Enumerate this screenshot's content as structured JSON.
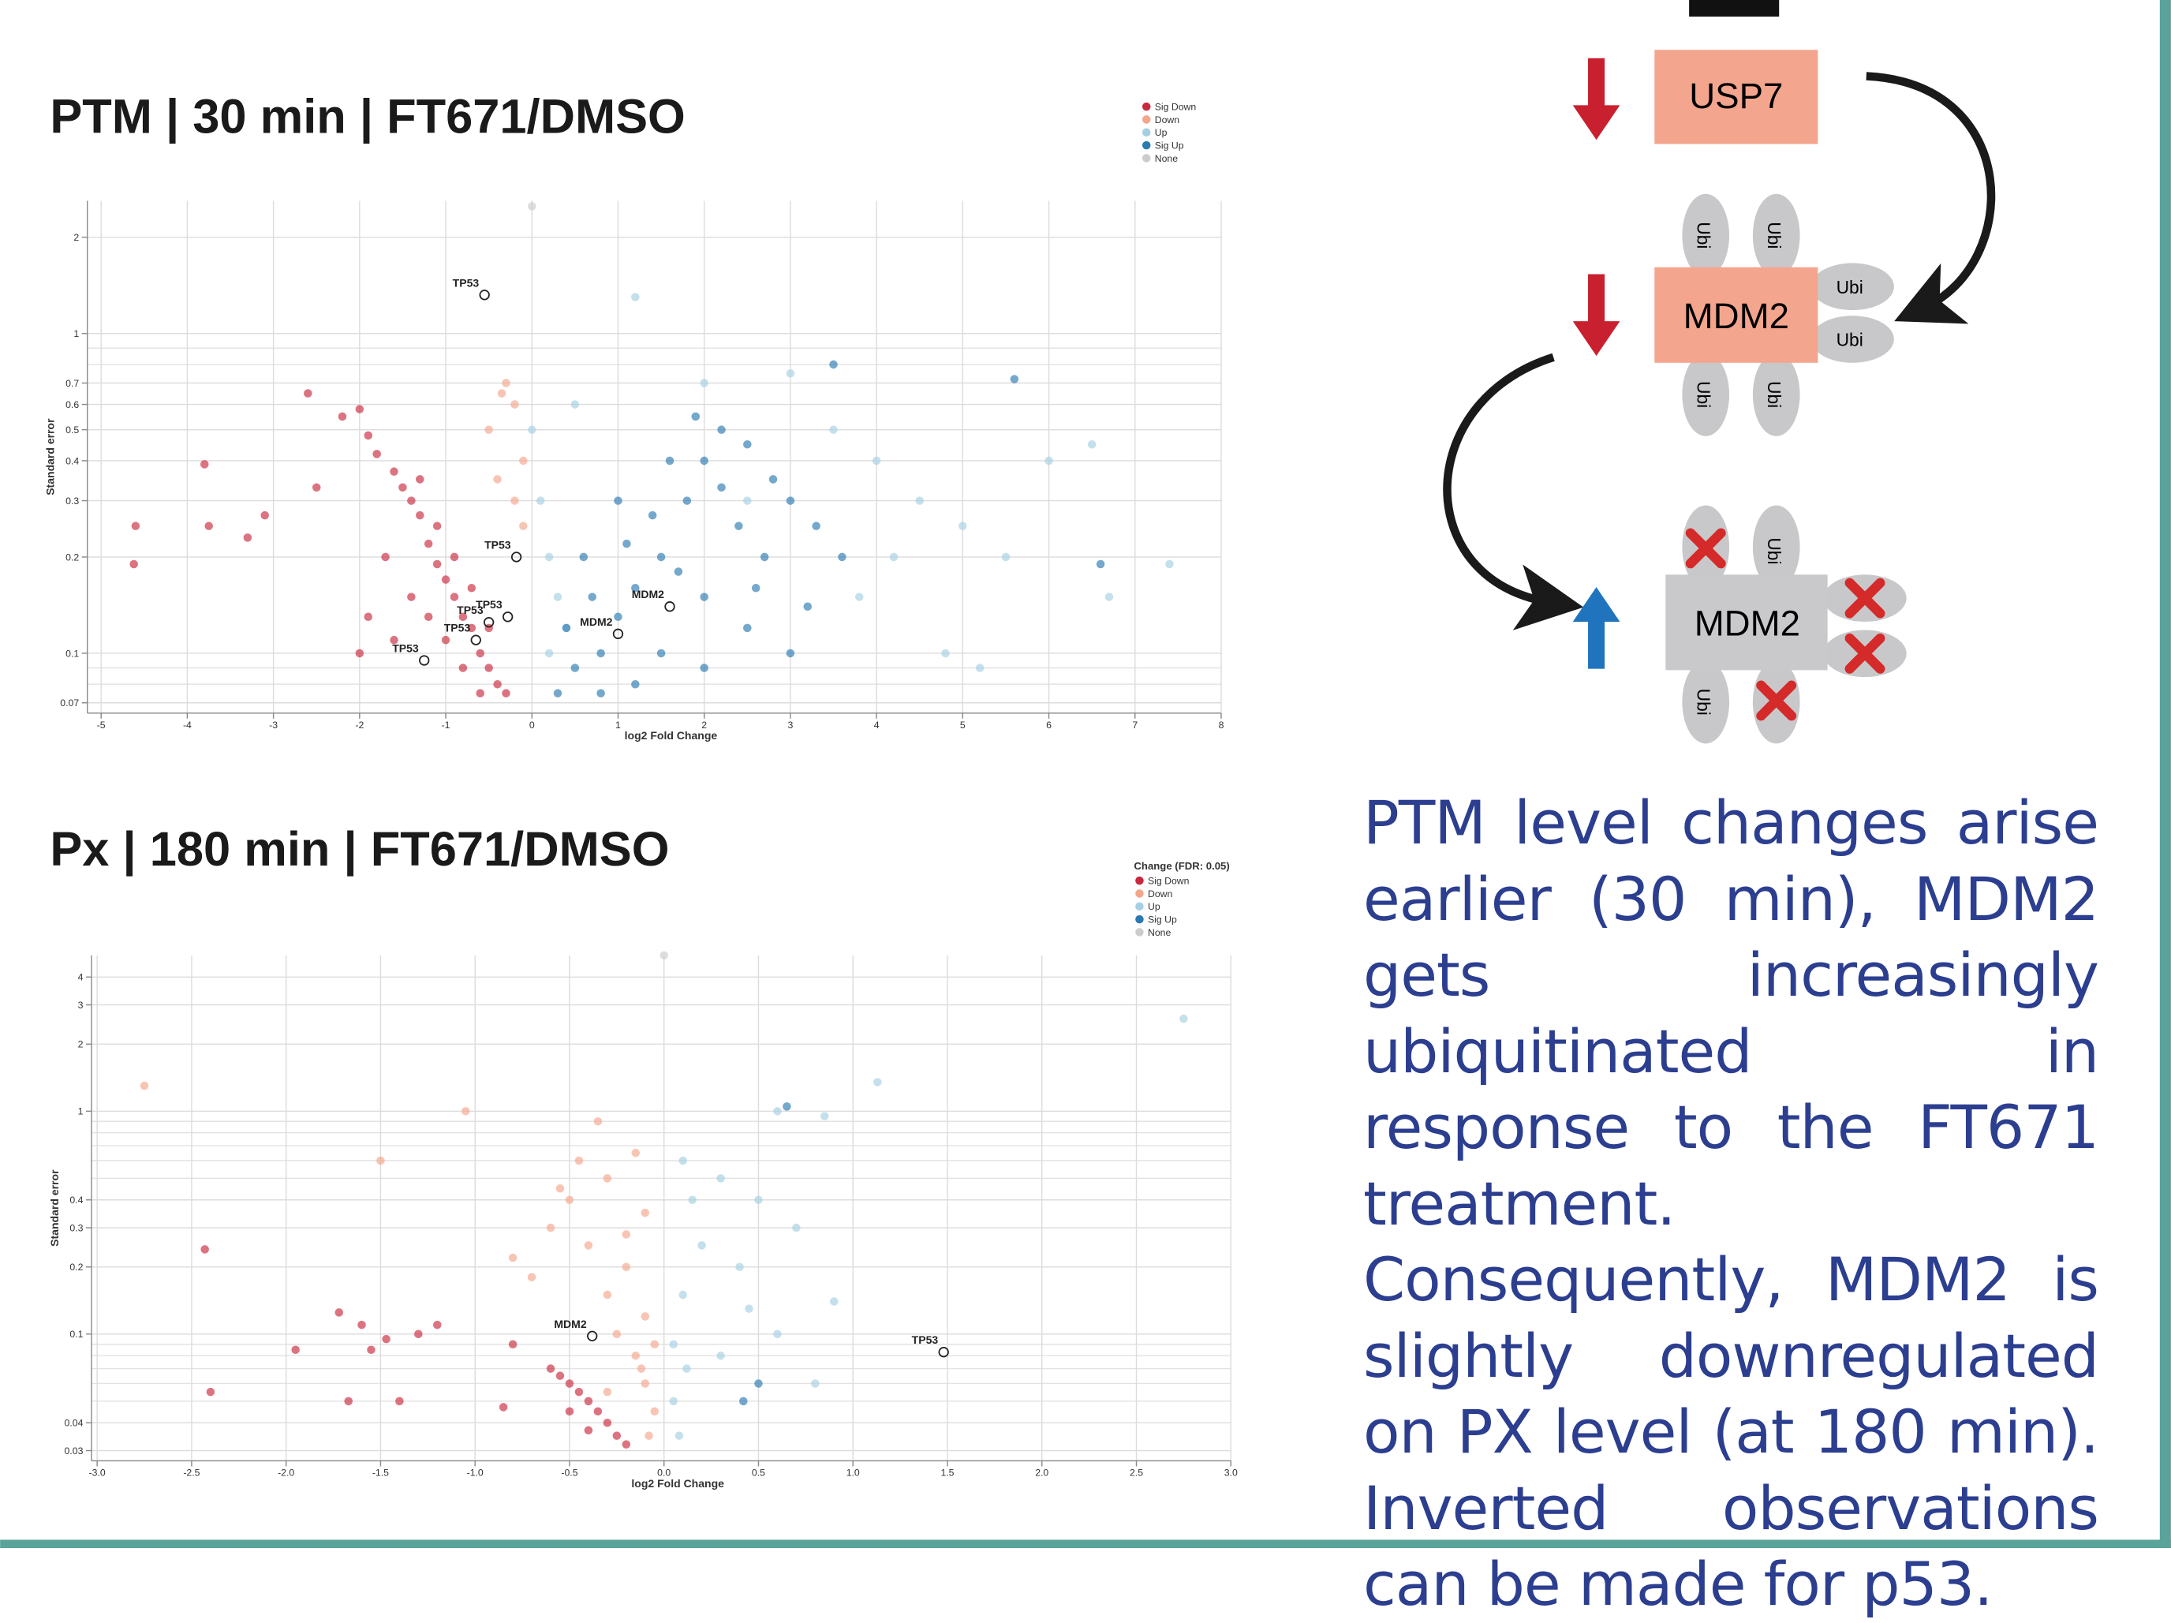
{
  "chart_data": [
    {
      "type": "scatter",
      "title": "PTM | 30 min | FT671/DMSO",
      "x_label": "log2 Fold Change",
      "y_label": "Standard error",
      "log_y": true,
      "grid": true,
      "xlim": [
        -5.16,
        8
      ],
      "xticks": [
        -5,
        -4,
        -3,
        -2,
        -1,
        0,
        1,
        2,
        3,
        4,
        5,
        6,
        7,
        8
      ],
      "ylim": [
        0.065,
        2.6
      ],
      "yticks": [
        0.07,
        0.1,
        0.2,
        0.3,
        0.4,
        0.5,
        0.6,
        0.7,
        1,
        2
      ],
      "minor_yticks": [
        0.08,
        0.09,
        0.8,
        0.9
      ],
      "series": [
        {
          "name": "Sig Down",
          "color": "#c9283e",
          "x": [
            -4.6,
            -4.62,
            -3.8,
            -3.75,
            -3.3,
            -3.1,
            -2.6,
            -2.5,
            -2.2,
            -2.0,
            -1.9,
            -1.8,
            -1.6,
            -1.5,
            -1.4,
            -1.3,
            -1.2,
            -1.1,
            -1.0,
            -0.9,
            -0.8,
            -0.7,
            -0.6,
            -0.5,
            -0.4,
            -0.3,
            -1.6,
            -1.9,
            -1.4,
            -1.2,
            -1.0,
            -0.8,
            -0.6,
            -2.0,
            -1.7,
            -1.1,
            -0.9,
            -0.7,
            -0.5,
            -1.3
          ],
          "values": [
            0.25,
            0.19,
            0.39,
            0.25,
            0.23,
            0.27,
            0.65,
            0.33,
            0.55,
            0.58,
            0.48,
            0.42,
            0.37,
            0.33,
            0.3,
            0.27,
            0.22,
            0.19,
            0.17,
            0.15,
            0.13,
            0.12,
            0.1,
            0.09,
            0.08,
            0.075,
            0.11,
            0.13,
            0.15,
            0.13,
            0.11,
            0.09,
            0.075,
            0.1,
            0.2,
            0.25,
            0.2,
            0.16,
            0.12,
            0.35
          ]
        },
        {
          "name": "Down",
          "color": "#f4a68c",
          "x": [
            -0.3,
            -0.2,
            -0.5,
            -0.1,
            -0.4,
            -0.2,
            -0.1,
            -0.35
          ],
          "values": [
            0.7,
            0.6,
            0.5,
            0.4,
            0.35,
            0.3,
            0.25,
            0.65
          ]
        },
        {
          "name": "Up",
          "color": "#a6cfe3",
          "x": [
            0.0,
            0.1,
            0.2,
            0.3,
            0.4,
            1.2,
            2.0,
            3.0,
            3.5,
            4.0,
            4.5,
            5.0,
            5.5,
            6.0,
            6.5,
            6.7,
            7.4,
            4.8,
            5.2,
            3.8,
            4.2,
            2.5,
            0.5,
            0.2
          ],
          "values": [
            0.5,
            0.3,
            0.2,
            0.15,
            0.12,
            1.3,
            0.7,
            0.75,
            0.5,
            0.4,
            0.3,
            0.25,
            0.2,
            0.4,
            0.45,
            0.15,
            0.19,
            0.1,
            0.09,
            0.15,
            0.2,
            0.3,
            0.6,
            0.1
          ]
        },
        {
          "name": "Sig Up",
          "color": "#2a79b0",
          "x": [
            0.3,
            0.5,
            0.8,
            1.0,
            1.2,
            1.5,
            1.8,
            2.0,
            2.2,
            1.9,
            2.5,
            2.8,
            3.0,
            3.3,
            3.6,
            2.0,
            2.5,
            1.5,
            1.2,
            0.8,
            2.0,
            3.0,
            3.5,
            5.6,
            6.6,
            2.7,
            1.0,
            0.6,
            1.6,
            2.4,
            0.4,
            0.7,
            1.1,
            1.4,
            1.7,
            2.2,
            2.6,
            3.2
          ],
          "values": [
            0.075,
            0.09,
            0.1,
            0.13,
            0.16,
            0.2,
            0.3,
            0.4,
            0.5,
            0.55,
            0.45,
            0.35,
            0.3,
            0.25,
            0.2,
            0.15,
            0.12,
            0.1,
            0.08,
            0.075,
            0.09,
            0.1,
            0.8,
            0.72,
            0.19,
            0.2,
            0.3,
            0.2,
            0.4,
            0.25,
            0.12,
            0.15,
            0.22,
            0.27,
            0.18,
            0.33,
            0.16,
            0.14
          ]
        },
        {
          "name": "None",
          "color": "#cccccc",
          "x": [
            0.0
          ],
          "values": [
            2.5
          ]
        }
      ],
      "annotations": [
        {
          "text": "TP53",
          "x": -0.55,
          "y": 1.32
        },
        {
          "text": "TP53",
          "x": -0.18,
          "y": 0.2
        },
        {
          "text": "TP53",
          "x": -0.28,
          "y": 0.13
        },
        {
          "text": "TP53",
          "x": -0.5,
          "y": 0.125
        },
        {
          "text": "TP53",
          "x": -0.65,
          "y": 0.11
        },
        {
          "text": "TP53",
          "x": -1.25,
          "y": 0.095
        },
        {
          "text": "MDM2",
          "x": 1.6,
          "y": 0.14
        },
        {
          "text": "MDM2",
          "x": 1.0,
          "y": 0.115
        }
      ]
    },
    {
      "type": "scatter",
      "title": "Px | 180 min | FT671/DMSO",
      "x_label": "log2 Fold Change",
      "y_label": "Standard error",
      "legend_title": "Change (FDR: 0.05)",
      "log_y": true,
      "grid": true,
      "xlim": [
        -3.03,
        3.0
      ],
      "xticks": [
        {
          "value": -3,
          "label": "-3.0"
        },
        {
          "value": -2.5,
          "label": "-2.5"
        },
        {
          "value": -2,
          "label": "-2.0"
        },
        {
          "value": -1.5,
          "label": "-1.5"
        },
        {
          "value": -1,
          "label": "-1.0"
        },
        {
          "value": -0.5,
          "label": "-0.5"
        },
        {
          "value": 0,
          "label": "0.0"
        },
        {
          "value": 0.5,
          "label": "0.5"
        },
        {
          "value": 1,
          "label": "1.0"
        },
        {
          "value": 1.5,
          "label": "1.5"
        },
        {
          "value": 2,
          "label": "2.0"
        },
        {
          "value": 2.5,
          "label": "2.5"
        },
        {
          "value": 3,
          "label": "3.0"
        }
      ],
      "ylim": [
        0.027,
        5
      ],
      "yticks": [
        0.03,
        0.04,
        0.1,
        0.2,
        0.3,
        0.4,
        1,
        2,
        3,
        4
      ],
      "minor_yticks": [
        0.05,
        0.06,
        0.07,
        0.08,
        0.09,
        0.5,
        0.6,
        0.7,
        0.8,
        0.9
      ],
      "series": [
        {
          "name": "Sig Down",
          "color": "#c9283e",
          "x": [
            -2.43,
            -2.4,
            -1.95,
            -1.72,
            -1.67,
            -1.6,
            -1.55,
            -1.47,
            -1.4,
            -1.3,
            -1.2,
            -0.85,
            -0.8,
            -0.6,
            -0.55,
            -0.5,
            -0.45,
            -0.4,
            -0.35,
            -0.3,
            -0.25,
            -0.2,
            -0.5,
            -0.4
          ],
          "values": [
            0.24,
            0.055,
            0.085,
            0.125,
            0.05,
            0.11,
            0.085,
            0.095,
            0.05,
            0.1,
            0.11,
            0.047,
            0.09,
            0.07,
            0.065,
            0.06,
            0.055,
            0.05,
            0.045,
            0.04,
            0.035,
            0.032,
            0.045,
            0.037
          ]
        },
        {
          "name": "Down",
          "color": "#f4a68c",
          "x": [
            -2.75,
            -1.5,
            -1.05,
            -0.35,
            -0.15,
            -0.3,
            -0.5,
            -0.6,
            -0.4,
            -0.2,
            -0.7,
            -0.3,
            -0.1,
            -0.25,
            -0.15,
            -0.1,
            -0.05,
            -0.08,
            -0.45,
            -0.55,
            -0.1,
            -0.2,
            -0.8,
            -0.05,
            -0.12,
            -0.3
          ],
          "values": [
            1.3,
            0.6,
            1.0,
            0.9,
            0.65,
            0.5,
            0.4,
            0.3,
            0.25,
            0.2,
            0.18,
            0.15,
            0.12,
            0.1,
            0.08,
            0.06,
            0.045,
            0.035,
            0.6,
            0.45,
            0.35,
            0.28,
            0.22,
            0.09,
            0.07,
            0.055
          ]
        },
        {
          "name": "Up",
          "color": "#a6cfe3",
          "x": [
            2.75,
            1.13,
            0.6,
            0.85,
            0.1,
            0.3,
            0.5,
            0.7,
            0.4,
            0.9,
            0.6,
            0.8,
            0.3,
            0.1,
            0.05,
            0.08,
            0.2,
            0.15,
            0.45,
            0.05,
            0.12
          ],
          "values": [
            2.6,
            1.35,
            1.0,
            0.95,
            0.6,
            0.5,
            0.4,
            0.3,
            0.2,
            0.14,
            0.1,
            0.06,
            0.08,
            0.15,
            0.05,
            0.035,
            0.25,
            0.4,
            0.13,
            0.09,
            0.07
          ]
        },
        {
          "name": "Sig Up",
          "color": "#2a79b0",
          "x": [
            0.65,
            0.5,
            0.42
          ],
          "values": [
            1.05,
            0.06,
            0.05
          ]
        },
        {
          "name": "None",
          "color": "#cccccc",
          "x": [
            0.0
          ],
          "values": [
            5.0
          ]
        }
      ],
      "annotations": [
        {
          "text": "MDM2",
          "x": -0.38,
          "y": 0.098
        },
        {
          "text": "TP53",
          "x": 1.48,
          "y": 0.083
        }
      ]
    }
  ],
  "diagram": {
    "usp7": "USP7",
    "mdm2_top": "MDM2",
    "mdm2_bottom": "MDM2",
    "ubi": "Ubi"
  },
  "caption": "PTM level changes arise earlier (30 min), MDM2 gets increasingly ubiquitinated in response to the FT671 treatment. Consequently, MDM2 is slightly downre­gulated on PX level (at 180 min). Inverted observations can be made for p53."
}
